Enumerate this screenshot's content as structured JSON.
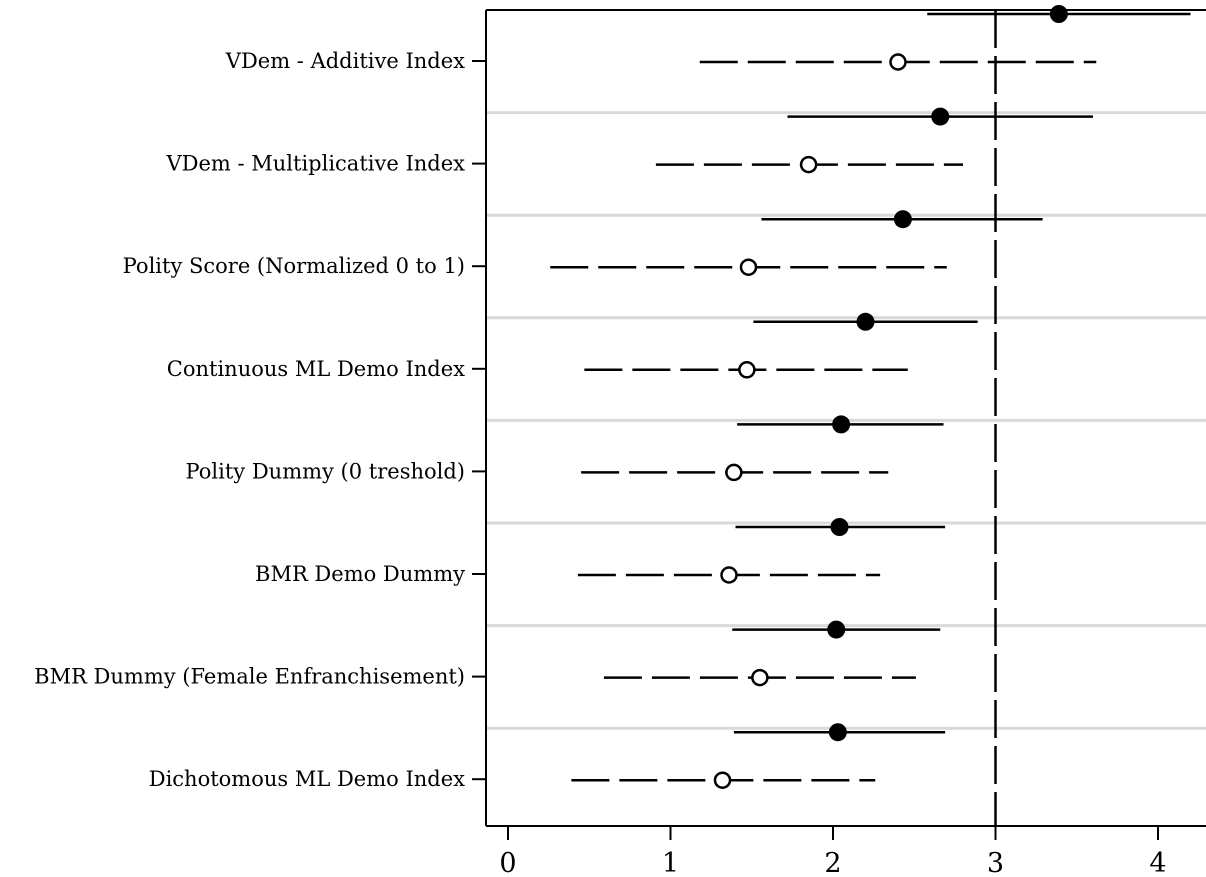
{
  "chart_data": {
    "type": "scatter",
    "subtype": "coefficient-plot",
    "title": "",
    "xlabel": "",
    "ylabel": "",
    "xlim": [
      -0.15,
      4.3
    ],
    "xticks": [
      0,
      1,
      2,
      3,
      4
    ],
    "reference_line": 3,
    "grid": "horizontal-separators",
    "legend": "none",
    "categories": [
      "VDem - Additive Index",
      "VDem - Multiplicative Index",
      "Polity Score (Normalized 0 to 1)",
      "Continuous ML Demo Index",
      "Polity Dummy (0 treshold)",
      "BMR Demo Dummy",
      "BMR Dummy (Female Enfranchisement)",
      "Dichotomous ML Demo Index"
    ],
    "series": [
      {
        "marker": "filled-circle",
        "line": "solid",
        "estimates": [
          3.39,
          2.66,
          2.43,
          2.2,
          2.05,
          2.04,
          2.02,
          2.03
        ],
        "lower": [
          2.58,
          1.72,
          1.56,
          1.51,
          1.41,
          1.4,
          1.38,
          1.39
        ],
        "upper": [
          4.2,
          3.6,
          3.29,
          2.89,
          2.68,
          2.69,
          2.66,
          2.69
        ]
      },
      {
        "marker": "hollow-circle",
        "line": "dashed",
        "estimates": [
          2.4,
          1.85,
          1.48,
          1.47,
          1.39,
          1.36,
          1.55,
          1.32
        ],
        "lower": [
          1.18,
          0.91,
          0.26,
          0.47,
          0.45,
          0.43,
          0.59,
          0.39
        ],
        "upper": [
          3.62,
          2.8,
          2.7,
          2.46,
          2.34,
          2.29,
          2.51,
          2.26
        ]
      }
    ],
    "colors": {
      "axis": "#000000",
      "marks": "#000000",
      "separator": "#d9d9d9"
    }
  }
}
